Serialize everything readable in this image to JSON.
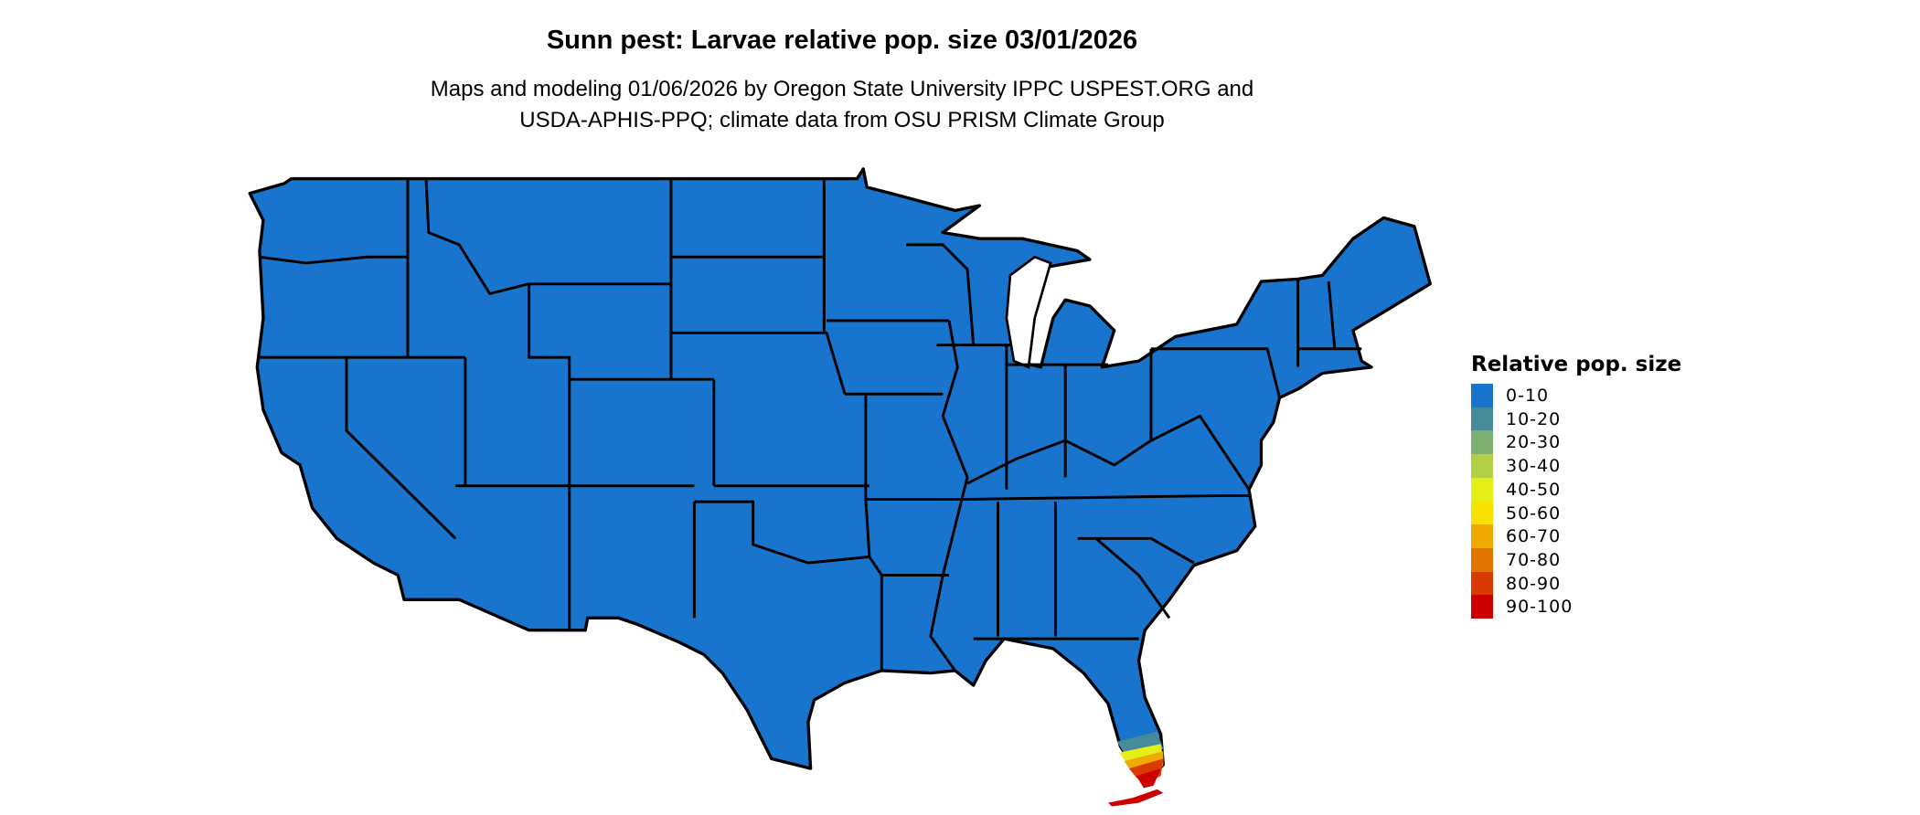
{
  "title": "Sunn pest: Larvae relative pop. size 03/01/2026",
  "subtitle_lines": [
    "Maps and modeling 01/06/2026 by Oregon State University IPPC USPEST.ORG and",
    "USDA-APHIS-PPQ; climate data from OSU PRISM Climate Group"
  ],
  "map": {
    "region": "Contiguous United States",
    "base_class": "0-10",
    "base_color": "#1874CD",
    "hotspot": "South Florida, up to 90-100"
  },
  "legend": {
    "title": "Relative pop. size",
    "placement": "right",
    "items": [
      {
        "label": "0-10",
        "color": "#1874CD"
      },
      {
        "label": "10-20",
        "color": "#458B9A"
      },
      {
        "label": "20-30",
        "color": "#7DAF71"
      },
      {
        "label": "30-40",
        "color": "#B2CF45"
      },
      {
        "label": "40-50",
        "color": "#E5EE17"
      },
      {
        "label": "50-60",
        "color": "#F8E000"
      },
      {
        "label": "60-70",
        "color": "#EEAA00"
      },
      {
        "label": "70-80",
        "color": "#E27400"
      },
      {
        "label": "80-90",
        "color": "#D93A00"
      },
      {
        "label": "90-100",
        "color": "#CD0000"
      }
    ]
  }
}
